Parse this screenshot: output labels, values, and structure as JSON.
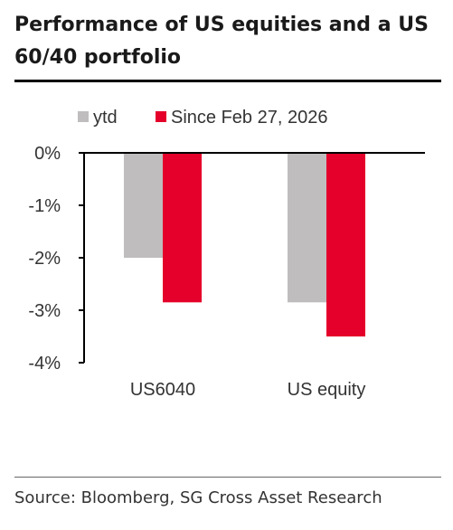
{
  "title": "Performance of US equities and a US 60/40 portfolio",
  "source": "Source: Bloomberg, SG Cross Asset Research",
  "colors": {
    "ytd": "#bfbdbd",
    "since": "#e4002b",
    "axis": "#000000"
  },
  "chart_data": {
    "type": "bar",
    "title": "Performance of US equities and a US 60/40 portfolio",
    "categories": [
      "US6040",
      "US equity"
    ],
    "series": [
      {
        "name": "ytd",
        "values": [
          -2.0,
          -2.85
        ]
      },
      {
        "name": "Since Feb 27, 2026",
        "values": [
          -2.85,
          -3.5
        ]
      }
    ],
    "ylim": [
      -4,
      0
    ],
    "yticks": [
      "0%",
      "-1%",
      "-2%",
      "-3%",
      "-4%"
    ],
    "ytick_values": [
      0,
      -1,
      -2,
      -3,
      -4
    ],
    "legend_position": "top",
    "grid": false,
    "xlabel": "",
    "ylabel": ""
  }
}
